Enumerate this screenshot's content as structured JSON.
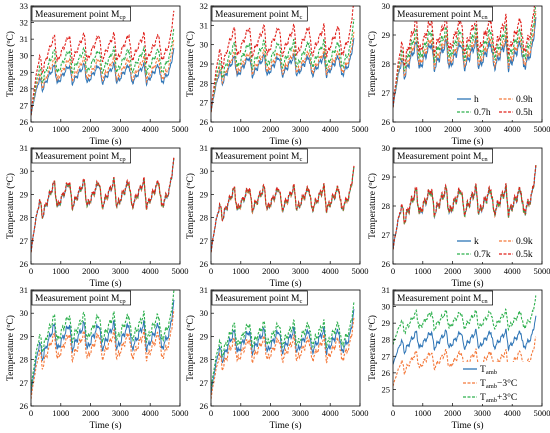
{
  "figure": {
    "xlabel": "Time (s)",
    "ylabel_main": "Temperature (",
    "ylabel_unit": "C)",
    "title_prefix": "Measurement point M",
    "x_ticks": [
      "0",
      "1000",
      "2000",
      "3000",
      "4000",
      "5000"
    ]
  },
  "colors": {
    "blue": "#2E75B6",
    "orange": "#F4793B",
    "green": "#2DB04D",
    "red": "#E0201B"
  },
  "legends": [
    {
      "row": 0,
      "entries": [
        {
          "label": "h",
          "color": "blue",
          "dash": false
        },
        {
          "label": "0.9h",
          "color": "orange",
          "dash": true
        },
        {
          "label": "0.7h",
          "color": "green",
          "dash": true
        },
        {
          "label": "0.5h",
          "color": "red",
          "dash": true
        }
      ]
    },
    {
      "row": 1,
      "entries": [
        {
          "label": "k",
          "color": "blue",
          "dash": false
        },
        {
          "label": "0.9k",
          "color": "orange",
          "dash": true
        },
        {
          "label": "0.7k",
          "color": "green",
          "dash": true
        },
        {
          "label": "0.5k",
          "color": "red",
          "dash": true
        }
      ]
    },
    {
      "row": 2,
      "entries": [
        {
          "label": "T",
          "sub": "amb",
          "color": "blue",
          "dash": false
        },
        {
          "label": "T",
          "sub": "amb",
          "suffix": "−3°C",
          "color": "orange",
          "dash": true
        },
        {
          "label": "T",
          "sub": "amb",
          "suffix": "+3°C",
          "color": "green",
          "dash": true
        }
      ]
    }
  ],
  "chart_data": [
    {
      "type": "line",
      "row": 0,
      "col": 0,
      "title_sub": "cp",
      "xlim": [
        0,
        5000
      ],
      "ylim": [
        26,
        33
      ],
      "yticks": [
        26,
        27,
        28,
        29,
        30,
        31,
        32,
        33
      ],
      "series": [
        {
          "key": "h",
          "color": "blue",
          "dash": false,
          "start": 26.4,
          "plateau": 28.9,
          "amp": 1.1
        },
        {
          "key": "0.9h",
          "color": "orange",
          "dash": true,
          "start": 26.4,
          "plateau": 29.2,
          "amp": 1.3
        },
        {
          "key": "0.7h",
          "color": "green",
          "dash": true,
          "start": 26.4,
          "plateau": 29.7,
          "amp": 1.4
        },
        {
          "key": "0.5h",
          "color": "red",
          "dash": true,
          "start": 26.4,
          "plateau": 30.5,
          "amp": 1.6
        }
      ]
    },
    {
      "type": "line",
      "row": 0,
      "col": 1,
      "title_sub": "c",
      "xlim": [
        0,
        5000
      ],
      "ylim": [
        26,
        32
      ],
      "yticks": [
        26,
        27,
        28,
        29,
        30,
        31,
        32
      ],
      "series": [
        {
          "key": "h",
          "color": "blue",
          "dash": false,
          "start": 26.5,
          "plateau": 28.9,
          "amp": 1.0
        },
        {
          "key": "0.9h",
          "color": "orange",
          "dash": true,
          "start": 26.5,
          "plateau": 29.1,
          "amp": 1.1
        },
        {
          "key": "0.7h",
          "color": "green",
          "dash": true,
          "start": 26.5,
          "plateau": 29.5,
          "amp": 1.3
        },
        {
          "key": "0.5h",
          "color": "red",
          "dash": true,
          "start": 26.5,
          "plateau": 30.2,
          "amp": 1.5
        }
      ]
    },
    {
      "type": "line",
      "row": 0,
      "col": 2,
      "title_sub": "cn",
      "xlim": [
        0,
        5000
      ],
      "ylim": [
        26,
        30
      ],
      "yticks": [
        26,
        27,
        28,
        29,
        30
      ],
      "series": [
        {
          "key": "h",
          "color": "blue",
          "dash": false,
          "start": 26.5,
          "plateau": 28.3,
          "amp": 0.9
        },
        {
          "key": "0.9h",
          "color": "orange",
          "dash": true,
          "start": 26.5,
          "plateau": 28.45,
          "amp": 0.95
        },
        {
          "key": "0.7h",
          "color": "green",
          "dash": true,
          "start": 26.5,
          "plateau": 28.7,
          "amp": 1.0
        },
        {
          "key": "0.5h",
          "color": "red",
          "dash": true,
          "start": 26.5,
          "plateau": 29.0,
          "amp": 1.15
        }
      ]
    },
    {
      "type": "line",
      "row": 1,
      "col": 0,
      "title_sub": "cp",
      "xlim": [
        0,
        5000
      ],
      "ylim": [
        26,
        31
      ],
      "yticks": [
        26,
        27,
        28,
        29,
        30,
        31
      ],
      "series": [
        {
          "key": "k",
          "color": "blue",
          "dash": false,
          "start": 26.5,
          "plateau": 29.0,
          "amp": 1.1
        },
        {
          "key": "0.9k",
          "color": "orange",
          "dash": true,
          "start": 26.5,
          "plateau": 29.0,
          "amp": 1.1
        },
        {
          "key": "0.7k",
          "color": "green",
          "dash": true,
          "start": 26.5,
          "plateau": 29.02,
          "amp": 1.1
        },
        {
          "key": "0.5k",
          "color": "red",
          "dash": true,
          "start": 26.5,
          "plateau": 29.05,
          "amp": 1.1
        }
      ]
    },
    {
      "type": "line",
      "row": 1,
      "col": 1,
      "title_sub": "c",
      "xlim": [
        0,
        5000
      ],
      "ylim": [
        26,
        31
      ],
      "yticks": [
        26,
        27,
        28,
        29,
        30,
        31
      ],
      "series": [
        {
          "key": "k",
          "color": "blue",
          "dash": false,
          "start": 26.5,
          "plateau": 28.8,
          "amp": 0.95
        },
        {
          "key": "0.9k",
          "color": "orange",
          "dash": true,
          "start": 26.5,
          "plateau": 28.8,
          "amp": 0.95
        },
        {
          "key": "0.7k",
          "color": "green",
          "dash": true,
          "start": 26.5,
          "plateau": 28.82,
          "amp": 0.95
        },
        {
          "key": "0.5k",
          "color": "red",
          "dash": true,
          "start": 26.5,
          "plateau": 28.85,
          "amp": 0.95
        }
      ]
    },
    {
      "type": "line",
      "row": 1,
      "col": 2,
      "title_sub": "cn",
      "xlim": [
        0,
        5000
      ],
      "ylim": [
        26,
        30
      ],
      "yticks": [
        26,
        27,
        28,
        29,
        30
      ],
      "series": [
        {
          "key": "k",
          "color": "blue",
          "dash": false,
          "start": 26.5,
          "plateau": 28.15,
          "amp": 0.85
        },
        {
          "key": "0.9k",
          "color": "orange",
          "dash": true,
          "start": 26.5,
          "plateau": 28.15,
          "amp": 0.85
        },
        {
          "key": "0.7k",
          "color": "green",
          "dash": true,
          "start": 26.5,
          "plateau": 28.17,
          "amp": 0.85
        },
        {
          "key": "0.5k",
          "color": "red",
          "dash": true,
          "start": 26.5,
          "plateau": 28.2,
          "amp": 0.85
        }
      ]
    },
    {
      "type": "line",
      "row": 2,
      "col": 0,
      "title_sub": "cp",
      "xlim": [
        0,
        5000
      ],
      "ylim": [
        26,
        31
      ],
      "yticks": [
        26,
        27,
        28,
        29,
        30,
        31
      ],
      "series": [
        {
          "key": "Tamb",
          "color": "blue",
          "dash": false,
          "start": 26.5,
          "plateau": 29.0,
          "amp": 1.1
        },
        {
          "key": "Tamb-3",
          "color": "orange",
          "dash": true,
          "start": 26.3,
          "plateau": 28.6,
          "amp": 1.1
        },
        {
          "key": "Tamb+3",
          "color": "green",
          "dash": true,
          "start": 26.7,
          "plateau": 29.4,
          "amp": 1.1
        }
      ]
    },
    {
      "type": "line",
      "row": 2,
      "col": 1,
      "title_sub": "c",
      "xlim": [
        0,
        5000
      ],
      "ylim": [
        26,
        31
      ],
      "yticks": [
        26,
        27,
        28,
        29,
        30,
        31
      ],
      "series": [
        {
          "key": "Tamb",
          "color": "blue",
          "dash": false,
          "start": 26.5,
          "plateau": 28.8,
          "amp": 0.95
        },
        {
          "key": "Tamb-3",
          "color": "orange",
          "dash": true,
          "start": 26.3,
          "plateau": 28.45,
          "amp": 0.95
        },
        {
          "key": "Tamb+3",
          "color": "green",
          "dash": true,
          "start": 26.7,
          "plateau": 29.1,
          "amp": 0.95
        }
      ]
    },
    {
      "type": "line",
      "row": 2,
      "col": 2,
      "title_sub": "cn",
      "xlim": [
        0,
        5000
      ],
      "ylim": [
        24,
        31
      ],
      "yticks": [
        25,
        26,
        27,
        28,
        29,
        30,
        31
      ],
      "series": [
        {
          "key": "Tamb",
          "color": "blue",
          "dash": false,
          "start": 26.5,
          "plateau": 28.0,
          "amp": 1.0
        },
        {
          "key": "Tamb-3",
          "color": "orange",
          "dash": true,
          "start": 25.2,
          "plateau": 26.8,
          "amp": 1.0
        },
        {
          "key": "Tamb+3",
          "color": "green",
          "dash": true,
          "start": 27.7,
          "plateau": 29.2,
          "amp": 1.0
        }
      ]
    }
  ]
}
